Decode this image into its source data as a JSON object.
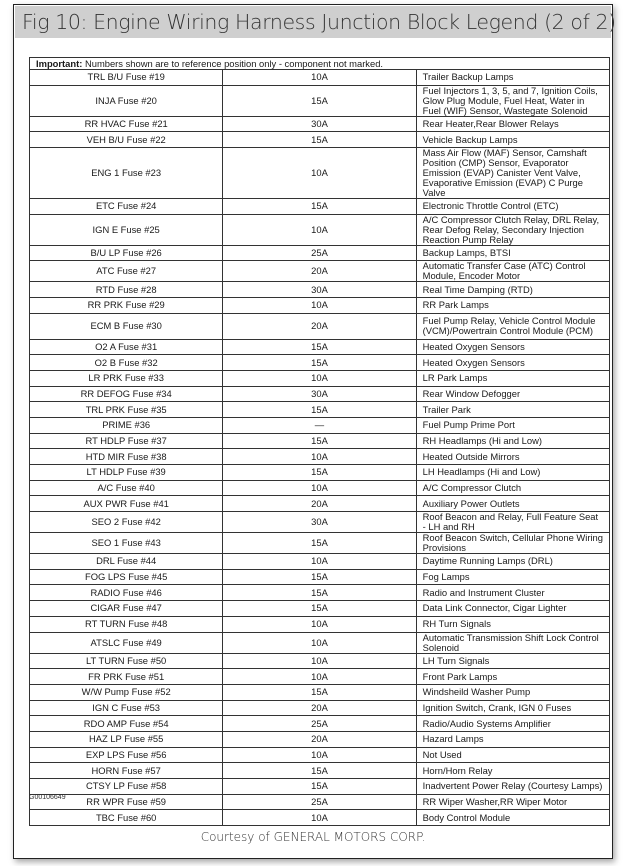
{
  "title": "Fig 10: Engine Wiring Harness Junction Block Legend (2 of 2)",
  "important_label": "Important:",
  "important_text": " Numbers shown are to reference position only - component not marked.",
  "rows": [
    {
      "fuse": "TRL B/U Fuse #19",
      "amp": "10A",
      "desc": "Trailer Backup Lamps",
      "lines": 1
    },
    {
      "fuse": "INJA Fuse #20",
      "amp": "15A",
      "desc": "Fuel Injectors 1, 3, 5, and 7, Ignition Coils, Glow Plug Module, Fuel Heat, Water in Fuel (WIF) Sensor, Wastegate Solenoid",
      "lines": 2
    },
    {
      "fuse": "RR HVAC Fuse #21",
      "amp": "30A",
      "desc": "Rear Heater,Rear Blower Relays",
      "lines": 1
    },
    {
      "fuse": "VEH B/U Fuse #22",
      "amp": "15A",
      "desc": "Vehicle Backup Lamps",
      "lines": 1
    },
    {
      "fuse": "ENG 1 Fuse #23",
      "amp": "10A",
      "desc": "Mass Air Flow (MAF) Sensor, Camshaft Position (CMP) Sensor, Evaporator Emission (EVAP) Canister Vent Valve, Evaporative Emission (EVAP) C Purge Valve",
      "lines": 3
    },
    {
      "fuse": "ETC Fuse #24",
      "amp": "15A",
      "desc": "Electronic Throttle Control (ETC)",
      "lines": 1
    },
    {
      "fuse": "IGN E Fuse #25",
      "amp": "10A",
      "desc": "A/C Compressor Clutch Relay, DRL Relay, Rear Defog Relay, Secondary Injection Reaction Pump Relay",
      "lines": 2
    },
    {
      "fuse": "B/U LP Fuse #26",
      "amp": "25A",
      "desc": "Backup Lamps, BTSI",
      "lines": 1
    },
    {
      "fuse": "ATC Fuse #27",
      "amp": "20A",
      "desc": "Automatic Transfer Case (ATC) Control Module, Encoder Motor",
      "lines": 1
    },
    {
      "fuse": "RTD Fuse #28",
      "amp": "30A",
      "desc": "Real Time Damping (RTD)",
      "lines": 1
    },
    {
      "fuse": "RR PRK Fuse #29",
      "amp": "10A",
      "desc": "RR Park Lamps",
      "lines": 1
    },
    {
      "fuse": "ECM B Fuse #30",
      "amp": "20A",
      "desc": "Fuel Pump Relay, Vehicle Control Module (VCM)/Powertrain Control Module (PCM)",
      "lines": 2
    },
    {
      "fuse": "O2 A Fuse #31",
      "amp": "15A",
      "desc": "Heated Oxygen Sensors",
      "lines": 1
    },
    {
      "fuse": "O2 B Fuse #32",
      "amp": "15A",
      "desc": "Heated Oxygen Sensors",
      "lines": 1
    },
    {
      "fuse": "LR PRK Fuse #33",
      "amp": "10A",
      "desc": "LR Park Lamps",
      "lines": 1
    },
    {
      "fuse": "RR DEFOG Fuse #34",
      "amp": "30A",
      "desc": "Rear Window Defogger",
      "lines": 1
    },
    {
      "fuse": "TRL PRK Fuse #35",
      "amp": "15A",
      "desc": "Trailer Park",
      "lines": 1
    },
    {
      "fuse": "PRIME #36",
      "amp": "—",
      "desc": "Fuel Pump Prime Port",
      "lines": 1
    },
    {
      "fuse": "RT HDLP Fuse #37",
      "amp": "15A",
      "desc": "RH Headlamps (Hi and Low)",
      "lines": 1
    },
    {
      "fuse": "HTD MIR Fuse #38",
      "amp": "10A",
      "desc": "Heated Outside Mirrors",
      "lines": 1
    },
    {
      "fuse": "LT HDLP Fuse #39",
      "amp": "15A",
      "desc": "LH Headlamps (Hi and Low)",
      "lines": 1
    },
    {
      "fuse": "A/C Fuse #40",
      "amp": "10A",
      "desc": "A/C Compressor Clutch",
      "lines": 1
    },
    {
      "fuse": "AUX PWR Fuse #41",
      "amp": "20A",
      "desc": "Auxiliary Power Outlets",
      "lines": 1
    },
    {
      "fuse": "SEO 2 Fuse #42",
      "amp": "30A",
      "desc": "Roof Beacon and Relay, Full Feature Seat - LH and RH",
      "lines": 1
    },
    {
      "fuse": "SEO 1 Fuse #43",
      "amp": "15A",
      "desc": "Roof Beacon Switch, Cellular Phone Wiring Provisions",
      "lines": 1
    },
    {
      "fuse": "DRL Fuse #44",
      "amp": "10A",
      "desc": "Daytime Running Lamps (DRL)",
      "lines": 1
    },
    {
      "fuse": "FOG LPS Fuse #45",
      "amp": "15A",
      "desc": "Fog Lamps",
      "lines": 1
    },
    {
      "fuse": "RADIO Fuse #46",
      "amp": "15A",
      "desc": "Radio and Instrument Cluster",
      "lines": 1
    },
    {
      "fuse": "CIGAR Fuse #47",
      "amp": "15A",
      "desc": "Data Link Connector, Cigar Lighter",
      "lines": 1
    },
    {
      "fuse": "RT TURN Fuse #48",
      "amp": "10A",
      "desc": "RH Turn Signals",
      "lines": 1
    },
    {
      "fuse": "ATSLC Fuse #49",
      "amp": "10A",
      "desc": "Automatic Transmission Shift Lock Control Solenoid",
      "lines": 1
    },
    {
      "fuse": "LT TURN Fuse #50",
      "amp": "10A",
      "desc": "LH Turn Signals",
      "lines": 1
    },
    {
      "fuse": "FR PRK Fuse #51",
      "amp": "10A",
      "desc": "Front Park Lamps",
      "lines": 1
    },
    {
      "fuse": "W/W Pump Fuse #52",
      "amp": "15A",
      "desc": "Windsheild Washer Pump",
      "lines": 1
    },
    {
      "fuse": "IGN C Fuse #53",
      "amp": "20A",
      "desc": "Ignition Switch, Crank, IGN 0 Fuses",
      "lines": 1
    },
    {
      "fuse": "RDO AMP Fuse #54",
      "amp": "25A",
      "desc": "Radio/Audio Systems Amplifier",
      "lines": 1
    },
    {
      "fuse": "HAZ LP Fuse #55",
      "amp": "20A",
      "desc": "Hazard Lamps",
      "lines": 1
    },
    {
      "fuse": "EXP LPS Fuse #56",
      "amp": "10A",
      "desc": "Not Used",
      "lines": 1
    },
    {
      "fuse": "HORN Fuse #57",
      "amp": "15A",
      "desc": "Horn/Horn Relay",
      "lines": 1
    },
    {
      "fuse": "CTSY LP Fuse #58",
      "amp": "15A",
      "desc": "Inadvertent Power Relay (Courtesy Lamps)",
      "lines": 1
    },
    {
      "fuse": "RR WPR Fuse #59",
      "amp": "25A",
      "desc": "RR Wiper Washer,RR Wiper Motor",
      "lines": 1
    },
    {
      "fuse": "TBC Fuse #60",
      "amp": "10A",
      "desc": "Body Control Module",
      "lines": 1
    }
  ],
  "figure_code": "G00106649",
  "courtesy": "Courtesy of GENERAL MOTORS CORP."
}
